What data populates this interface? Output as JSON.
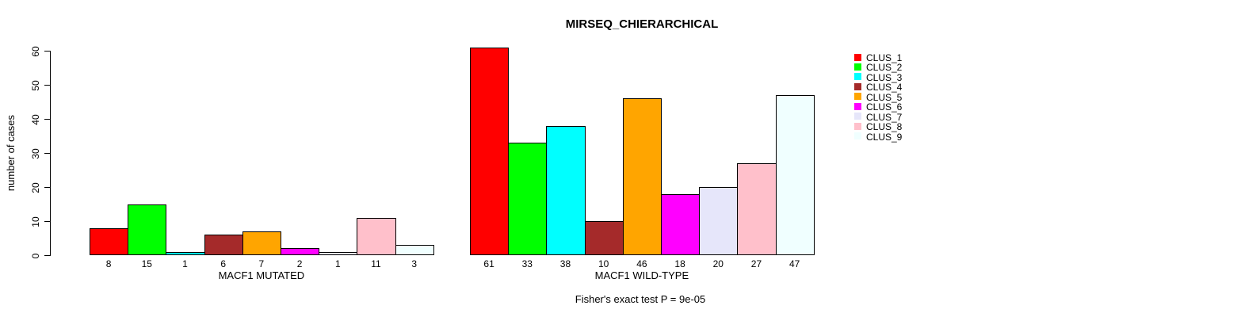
{
  "title": "MIRSEQ_CHIERARCHICAL",
  "footer": "Fisher's exact test P = 9e-05",
  "chart_data": {
    "type": "bar",
    "title": "MIRSEQ_CHIERARCHICAL",
    "ylabel": "number of cases",
    "xlabel": "",
    "ylim": [
      0,
      60
    ],
    "yticks": [
      0,
      10,
      20,
      30,
      40,
      50,
      60
    ],
    "grid": false,
    "legend_position": "top-right",
    "categories": [
      "CLUS_1",
      "CLUS_2",
      "CLUS_3",
      "CLUS_4",
      "CLUS_5",
      "CLUS_6",
      "CLUS_7",
      "CLUS_8",
      "CLUS_9"
    ],
    "colors": [
      "#FF0000",
      "#00FF00",
      "#00FFFF",
      "#A52A2A",
      "#FFA500",
      "#FF00FF",
      "#E6E6FA",
      "#FFC0CB",
      "#F0FFFF"
    ],
    "series": [
      {
        "name": "MACF1 MUTATED",
        "values": [
          8,
          15,
          1,
          6,
          7,
          2,
          1,
          11,
          3
        ]
      },
      {
        "name": "MACF1 WILD-TYPE",
        "values": [
          61,
          33,
          38,
          10,
          46,
          18,
          20,
          27,
          47
        ]
      }
    ],
    "bar_value_labels_shown": true,
    "annotation": "Fisher's exact test P = 9e-05"
  }
}
